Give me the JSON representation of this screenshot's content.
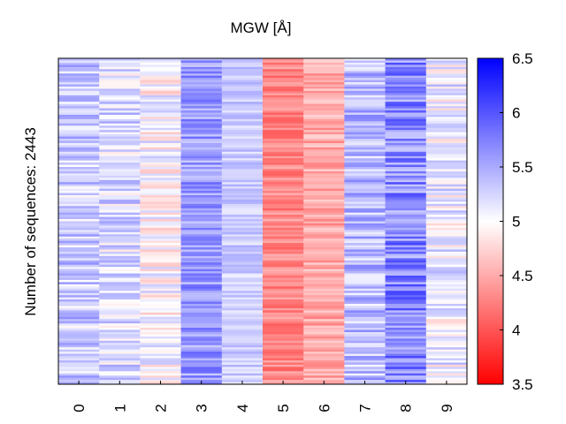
{
  "chart_data": {
    "type": "heatmap",
    "title": "MGW [Å]",
    "ylabel": "Number of sequences: 2443",
    "xlabel": "",
    "columns": [
      "0",
      "1",
      "2",
      "3",
      "4",
      "5",
      "6",
      "7",
      "8",
      "9"
    ],
    "rows": 2443,
    "colorbar": {
      "min": 3.5,
      "max": 6.5,
      "center": 5.0,
      "ticks": [
        "3.5",
        "4",
        "4.5",
        "5",
        "5.5",
        "6",
        "6.5"
      ],
      "tick_values": [
        3.5,
        4.0,
        4.5,
        5.0,
        5.5,
        6.0,
        6.5
      ],
      "colormap": "bwr_r",
      "low_color": "#ff0000",
      "mid_color": "#ffffff",
      "high_color": "#0000ff"
    },
    "column_mean_values": [
      5.3,
      5.2,
      5.0,
      5.6,
      5.3,
      4.3,
      4.5,
      5.4,
      5.7,
      5.1
    ],
    "column_spread": [
      0.35,
      0.35,
      0.35,
      0.3,
      0.2,
      0.25,
      0.25,
      0.35,
      0.4,
      0.35
    ],
    "grid": false
  }
}
